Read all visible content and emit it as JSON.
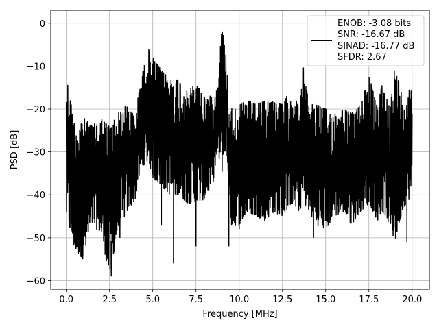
{
  "chart_data": {
    "type": "line",
    "xlabel": "Frequency [MHz]",
    "ylabel": "PSD [dB]",
    "xlim": [
      -0.9,
      21.0
    ],
    "ylim": [
      -62,
      3
    ],
    "xticks": [
      0.0,
      2.5,
      5.0,
      7.5,
      10.0,
      12.5,
      15.0,
      17.5,
      20.0
    ],
    "xtick_labels": [
      "0.0",
      "2.5",
      "5.0",
      "7.5",
      "10.0",
      "12.5",
      "15.0",
      "17.5",
      "20.0"
    ],
    "yticks": [
      0,
      -10,
      -20,
      -30,
      -40,
      -50,
      -60
    ],
    "ytick_labels": [
      "0",
      "−10",
      "−20",
      "−30",
      "−40",
      "−50",
      "−60"
    ],
    "grid": true,
    "legend": {
      "placement": "top-right",
      "entries": [
        "ENOB: -3.08 bits",
        "SNR: -16.67 dB",
        "SINAD: -16.77 dB",
        "SFDR: 2.67"
      ]
    },
    "series": [
      {
        "color": "#000000",
        "x": [
          0.0,
          0.5,
          1.0,
          1.5,
          2.0,
          2.5,
          3.0,
          3.5,
          4.0,
          4.25,
          4.5,
          4.75,
          5.0,
          5.5,
          6.0,
          6.5,
          7.0,
          7.5,
          8.0,
          8.5,
          8.75,
          9.0,
          9.25,
          9.5,
          10.0,
          10.5,
          11.0,
          11.5,
          12.0,
          12.5,
          13.0,
          13.5,
          13.7,
          14.0,
          14.5,
          15.0,
          15.5,
          16.0,
          16.5,
          17.0,
          17.5,
          18.0,
          18.25,
          18.5,
          18.75,
          19.0,
          19.5,
          20.0
        ],
        "upper": [
          -12,
          -24,
          -22,
          -24,
          -22,
          -24,
          -21,
          -19,
          -22,
          -14,
          -10,
          -6,
          -8,
          -11,
          -13,
          -13,
          -16,
          -14,
          -17,
          -17,
          -15,
          0,
          -8,
          -20,
          -19,
          -18,
          -19,
          -18,
          -18,
          -19,
          -15,
          -20,
          -10,
          -18,
          -19,
          -20,
          -21,
          -20,
          -21,
          -19,
          -12,
          -20,
          -14,
          -17,
          -19,
          -10,
          -18,
          -14
        ],
        "lower": [
          -45,
          -53,
          -55,
          -47,
          -49,
          -59,
          -48,
          -44,
          -41,
          -35,
          -33,
          -32,
          -36,
          -38,
          -40,
          -40,
          -42,
          -42,
          -41,
          -37,
          -30,
          -35,
          -28,
          -47,
          -47,
          -44,
          -45,
          -46,
          -44,
          -45,
          -42,
          -44,
          -41,
          -44,
          -47,
          -48,
          -45,
          -44,
          -47,
          -44,
          -42,
          -46,
          -44,
          -45,
          -48,
          -51,
          -43,
          -40
        ],
        "dips": [
          [
            0.85,
            -54
          ],
          [
            0.95,
            -55
          ],
          [
            2.6,
            -59
          ],
          [
            3.1,
            -50
          ],
          [
            5.5,
            -47
          ],
          [
            6.2,
            -56
          ],
          [
            7.5,
            -52
          ],
          [
            9.4,
            -52
          ],
          [
            10.0,
            -48
          ],
          [
            14.3,
            -50
          ],
          [
            19.7,
            -51
          ]
        ]
      }
    ]
  }
}
